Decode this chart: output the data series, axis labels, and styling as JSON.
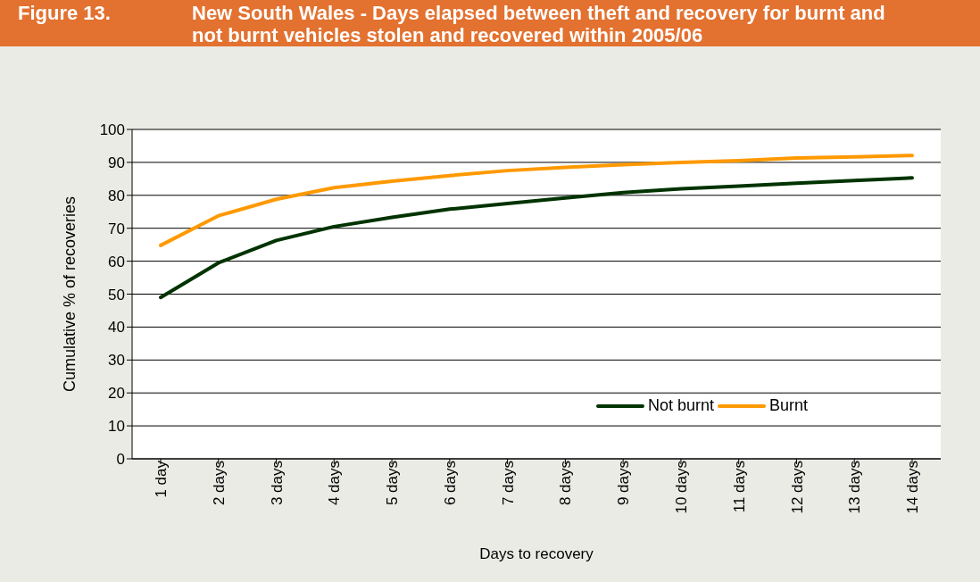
{
  "chart_data": {
    "type": "line",
    "title": "New South Wales - Days elapsed between theft and recovery for burnt and not burnt vehicles stolen and recovered within 2005/06",
    "annotations": [
      "Figure 13."
    ],
    "xlabel": "Days to recovery",
    "ylabel": "Cumulative % of recoveries",
    "categories": [
      "1 day",
      "2 days",
      "3 days",
      "4 days",
      "5 days",
      "6 days",
      "7 days",
      "8 days",
      "9 days",
      "10 days",
      "11 days",
      "12 days",
      "13 days",
      "14 days"
    ],
    "series": [
      {
        "name": "Not burnt",
        "color": "#003300",
        "values": [
          49,
          59.5,
          66.3,
          70.5,
          73.3,
          75.8,
          77.5,
          79.2,
          80.8,
          82,
          82.8,
          83.7,
          84.5,
          85.3
        ]
      },
      {
        "name": "Burnt",
        "color": "#ff9900",
        "values": [
          64.8,
          73.8,
          78.8,
          82.3,
          84.3,
          86,
          87.5,
          88.5,
          89.3,
          90,
          90.5,
          91.3,
          91.7,
          92.1
        ]
      }
    ],
    "ylim": [
      0,
      100
    ],
    "yticks": [
      0,
      10,
      20,
      30,
      40,
      50,
      60,
      70,
      80,
      90,
      100
    ],
    "grid": "y",
    "legend": "bottom right",
    "marker": "none",
    "line_style": "solid"
  }
}
